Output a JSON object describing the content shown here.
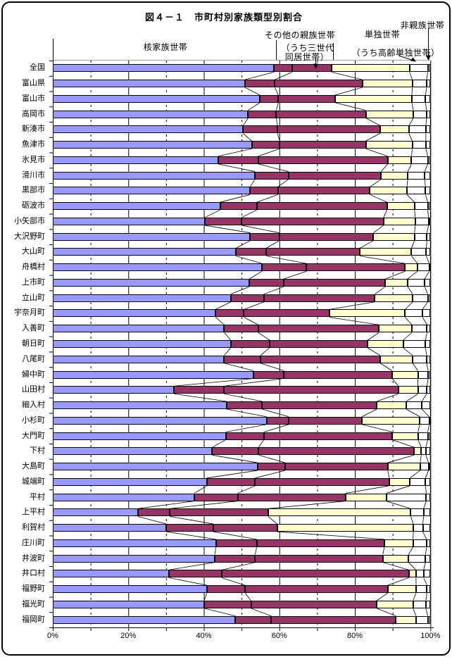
{
  "title": "図４－１　市町村別家族類型別割合",
  "annotations": {
    "nuclear": "核家族世帯",
    "other_relatives": "その他の親族世帯",
    "three_gen_line1": "（うち三世代",
    "three_gen_line2": "同居世帯）",
    "single": "単独世帯",
    "elderly_single": "（うち高齢単独世帯）",
    "non_relative": "非親族世帯"
  },
  "x_axis": {
    "tick_labels": [
      "0%",
      "20%",
      "40%",
      "60%",
      "80%",
      "100%"
    ],
    "min": 0,
    "max": 100,
    "major_step": 20,
    "minor_step": 10
  },
  "chart_data": {
    "type": "bar",
    "orientation": "horizontal",
    "stacked": true,
    "unit": "%",
    "xlim": [
      0,
      100
    ],
    "grid": "vertical, solid at majors, dashed at minors",
    "series_names": [
      "核家族世帯",
      "その他の親族世帯（三世代同居以外）",
      "うち三世代同居世帯",
      "単独世帯（高齢単独以外）",
      "うち高齢単独世帯",
      "非親族世帯"
    ],
    "colors": [
      "#9999ff",
      "#993366",
      "#993366",
      "#ffffcc",
      "#ffffff",
      "#ffffff"
    ],
    "rows": [
      {
        "label": "全国",
        "values": [
          58.6,
          4.8,
          10.4,
          20.7,
          4.8,
          0.7
        ]
      },
      {
        "label": "富山県",
        "values": [
          50.9,
          7.9,
          23.2,
          13.2,
          3.8,
          1.0
        ]
      },
      {
        "label": "富山市",
        "values": [
          54.8,
          4.9,
          15.1,
          20.3,
          3.6,
          1.3
        ]
      },
      {
        "label": "高岡市",
        "values": [
          51.7,
          7.5,
          23.7,
          12.6,
          3.5,
          1.0
        ]
      },
      {
        "label": "新湊市",
        "values": [
          50.4,
          9.1,
          27.2,
          7.6,
          4.5,
          1.2
        ]
      },
      {
        "label": "魚津市",
        "values": [
          52.7,
          7.4,
          22.8,
          12.3,
          3.6,
          1.2
        ]
      },
      {
        "label": "氷見市",
        "values": [
          43.8,
          10.6,
          34.3,
          6.3,
          4.3,
          0.7
        ]
      },
      {
        "label": "滑川市",
        "values": [
          53.6,
          8.8,
          24.5,
          7.1,
          4.5,
          1.5
        ]
      },
      {
        "label": "黒部市",
        "values": [
          52.2,
          7.4,
          24.4,
          9.8,
          4.9,
          1.3
        ]
      },
      {
        "label": "砺波市",
        "values": [
          44.3,
          9.7,
          34.5,
          7.3,
          3.5,
          0.7
        ]
      },
      {
        "label": "小矢部市",
        "values": [
          40.2,
          9.8,
          37.6,
          8.4,
          3.5,
          0.5
        ]
      },
      {
        "label": "大沢野町",
        "values": [
          52.3,
          7.7,
          24.9,
          10.9,
          3.3,
          0.9
        ]
      },
      {
        "label": "大山町",
        "values": [
          48.5,
          8.0,
          24.8,
          13.7,
          3.9,
          1.1
        ]
      },
      {
        "label": "舟橋村",
        "values": [
          55.4,
          11.8,
          26.1,
          3.3,
          3.1,
          0.3
        ]
      },
      {
        "label": "上市町",
        "values": [
          52.1,
          9.1,
          26.9,
          5.9,
          4.5,
          1.5
        ]
      },
      {
        "label": "立山町",
        "values": [
          47.1,
          8.8,
          29.4,
          10.0,
          4.0,
          0.7
        ]
      },
      {
        "label": "宇奈月町",
        "values": [
          43.1,
          7.5,
          22.6,
          20.1,
          4.6,
          2.1
        ]
      },
      {
        "label": "入善町",
        "values": [
          45.4,
          9.0,
          32.0,
          8.7,
          4.0,
          0.9
        ]
      },
      {
        "label": "朝日町",
        "values": [
          47.1,
          10.3,
          26.0,
          9.4,
          5.9,
          1.3
        ]
      },
      {
        "label": "八尾町",
        "values": [
          45.4,
          9.6,
          31.7,
          8.6,
          3.7,
          1.0
        ]
      },
      {
        "label": "婦中町",
        "values": [
          53.2,
          8.0,
          28.7,
          6.8,
          2.7,
          0.6
        ]
      },
      {
        "label": "山田村",
        "values": [
          32.1,
          13.3,
          46.1,
          5.2,
          2.4,
          0.9
        ]
      },
      {
        "label": "細入村",
        "values": [
          46.0,
          9.4,
          30.4,
          7.8,
          4.1,
          2.3
        ]
      },
      {
        "label": "小杉町",
        "values": [
          56.6,
          5.9,
          19.4,
          15.3,
          2.5,
          0.3
        ]
      },
      {
        "label": "大門町",
        "values": [
          45.8,
          10.1,
          34.0,
          6.8,
          2.6,
          0.7
        ]
      },
      {
        "label": "下村",
        "values": [
          42.2,
          12.3,
          41.2,
          1.9,
          1.2,
          1.2
        ]
      },
      {
        "label": "大島町",
        "values": [
          54.2,
          7.3,
          27.2,
          8.6,
          2.2,
          0.5
        ]
      },
      {
        "label": "城端町",
        "values": [
          40.8,
          12.8,
          35.5,
          5.5,
          4.1,
          1.3
        ]
      },
      {
        "label": "平村",
        "values": [
          37.5,
          11.5,
          28.5,
          10.8,
          10.6,
          1.1
        ]
      },
      {
        "label": "上平村",
        "values": [
          22.5,
          8.5,
          26.0,
          37.8,
          3.4,
          1.8
        ]
      },
      {
        "label": "利賀村",
        "values": [
          30.1,
          12.4,
          16.9,
          36.1,
          2.5,
          2.0
        ]
      },
      {
        "label": "庄川町",
        "values": [
          43.2,
          10.8,
          33.8,
          7.6,
          3.6,
          1.0
        ]
      },
      {
        "label": "井波町",
        "values": [
          42.9,
          10.7,
          33.8,
          6.8,
          4.5,
          1.3
        ]
      },
      {
        "label": "井口村",
        "values": [
          30.7,
          14.0,
          49.6,
          1.9,
          2.0,
          1.8
        ]
      },
      {
        "label": "福野町",
        "values": [
          40.8,
          10.1,
          37.8,
          7.5,
          2.9,
          0.9
        ]
      },
      {
        "label": "福光町",
        "values": [
          40.1,
          12.4,
          33.3,
          9.6,
          3.4,
          1.2
        ]
      },
      {
        "label": "福岡町",
        "values": [
          48.3,
          9.5,
          33.0,
          5.4,
          3.1,
          0.7
        ]
      }
    ]
  }
}
